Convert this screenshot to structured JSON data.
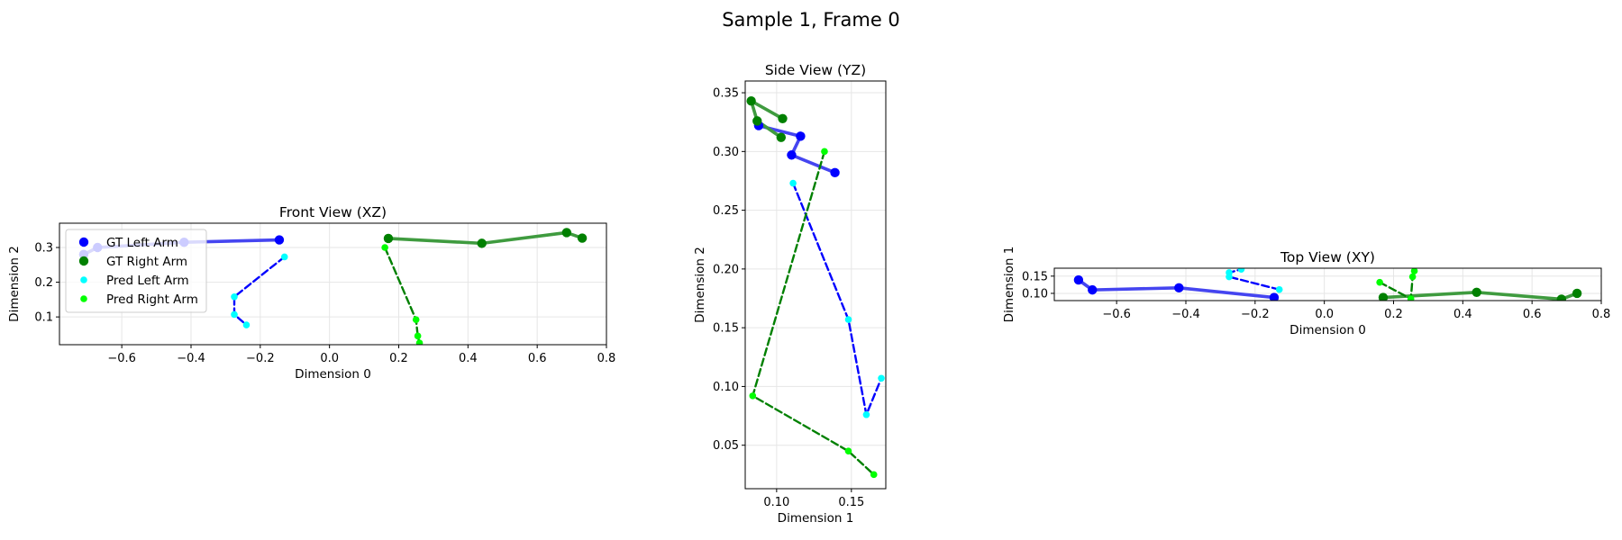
{
  "title": "Sample 1, Frame 0",
  "colors": {
    "gt_left": "#0000ff",
    "gt_right": "#008000",
    "pred_left": "#00ffff",
    "pred_right": "#00ff00",
    "gt_left_line": "#4545f0",
    "gt_right_line": "#3f9b3f",
    "grid": "#e6e6e6"
  },
  "legend": {
    "gt_left": "GT Left Arm",
    "gt_right": "GT Right Arm",
    "pred_left": "Pred Left Arm",
    "pred_right": "Pred Right Arm"
  },
  "chart_data": [
    {
      "type": "line",
      "title": "Front View (XZ)",
      "xlabel": "Dimension 0",
      "ylabel": "Dimension 2",
      "xlim": [
        -0.78,
        0.8
      ],
      "ylim": [
        0.02,
        0.37
      ],
      "xticks": [
        -0.6,
        -0.4,
        -0.2,
        0.0,
        0.2,
        0.4,
        0.6,
        0.8
      ],
      "xtick_labels": [
        "−0.6",
        "−0.4",
        "−0.2",
        "0.0",
        "0.2",
        "0.4",
        "0.6",
        "0.8"
      ],
      "yticks": [
        0.1,
        0.2,
        0.3
      ],
      "ytick_labels": [
        "0.1",
        "0.2",
        "0.3"
      ],
      "grid": true,
      "legend_position": "upper-left",
      "series": [
        {
          "name": "GT Left Arm",
          "x": [
            -0.71,
            -0.67,
            -0.42,
            -0.145
          ],
          "y": [
            0.28,
            0.3,
            0.315,
            0.322
          ]
        },
        {
          "name": "GT Right Arm",
          "x": [
            0.17,
            0.44,
            0.685,
            0.73
          ],
          "y": [
            0.326,
            0.312,
            0.343,
            0.327
          ]
        },
        {
          "name": "Pred Left Arm",
          "x": [
            -0.13,
            -0.275,
            -0.275,
            -0.24
          ],
          "y": [
            0.273,
            0.158,
            0.107,
            0.077
          ]
        },
        {
          "name": "Pred Right Arm",
          "x": [
            0.16,
            0.25,
            0.255,
            0.26
          ],
          "y": [
            0.3,
            0.092,
            0.045,
            0.025
          ]
        }
      ]
    },
    {
      "type": "line",
      "title": "Side View (YZ)",
      "xlabel": "Dimension 1",
      "ylabel": "Dimension 2",
      "xlim": [
        0.079,
        0.173
      ],
      "ylim": [
        0.013,
        0.36
      ],
      "xticks": [
        0.1,
        0.15
      ],
      "xtick_labels": [
        "0.10",
        "0.15"
      ],
      "yticks": [
        0.05,
        0.1,
        0.15,
        0.2,
        0.25,
        0.3,
        0.35
      ],
      "ytick_labels": [
        "0.05",
        "0.10",
        "0.15",
        "0.20",
        "0.25",
        "0.30",
        "0.35"
      ],
      "grid": true,
      "series": [
        {
          "name": "GT Left Arm",
          "x": [
            0.139,
            0.11,
            0.116,
            0.088
          ],
          "y": [
            0.282,
            0.297,
            0.313,
            0.322
          ]
        },
        {
          "name": "GT Right Arm",
          "x": [
            0.103,
            0.087,
            0.083,
            0.104
          ],
          "y": [
            0.312,
            0.326,
            0.343,
            0.328
          ]
        },
        {
          "name": "Pred Left Arm",
          "x": [
            0.111,
            0.148,
            0.16,
            0.17
          ],
          "y": [
            0.273,
            0.157,
            0.076,
            0.107
          ]
        },
        {
          "name": "Pred Right Arm",
          "x": [
            0.132,
            0.084,
            0.148,
            0.165
          ],
          "y": [
            0.3,
            0.092,
            0.045,
            0.025
          ]
        }
      ]
    },
    {
      "type": "line",
      "title": "Top View (XY)",
      "xlabel": "Dimension 0",
      "ylabel": "Dimension 1",
      "xlim": [
        -0.78,
        0.8
      ],
      "ylim": [
        0.079,
        0.173
      ],
      "xticks": [
        -0.6,
        -0.4,
        -0.2,
        0.0,
        0.2,
        0.4,
        0.6,
        0.8
      ],
      "xtick_labels": [
        "−0.6",
        "−0.4",
        "−0.2",
        "0.0",
        "0.2",
        "0.4",
        "0.6",
        "0.8"
      ],
      "yticks": [
        0.1,
        0.15
      ],
      "ytick_labels": [
        "0.10",
        "0.15"
      ],
      "grid": true,
      "series": [
        {
          "name": "GT Left Arm",
          "x": [
            -0.71,
            -0.67,
            -0.42,
            -0.145
          ],
          "y": [
            0.139,
            0.11,
            0.116,
            0.088
          ]
        },
        {
          "name": "GT Right Arm",
          "x": [
            0.17,
            0.44,
            0.685,
            0.73
          ],
          "y": [
            0.088,
            0.103,
            0.083,
            0.1
          ]
        },
        {
          "name": "Pred Left Arm",
          "x": [
            -0.13,
            -0.275,
            -0.275,
            -0.24
          ],
          "y": [
            0.111,
            0.148,
            0.16,
            0.17
          ]
        },
        {
          "name": "Pred Right Arm",
          "x": [
            0.16,
            0.25,
            0.255,
            0.26
          ],
          "y": [
            0.132,
            0.084,
            0.148,
            0.165
          ]
        }
      ]
    }
  ]
}
